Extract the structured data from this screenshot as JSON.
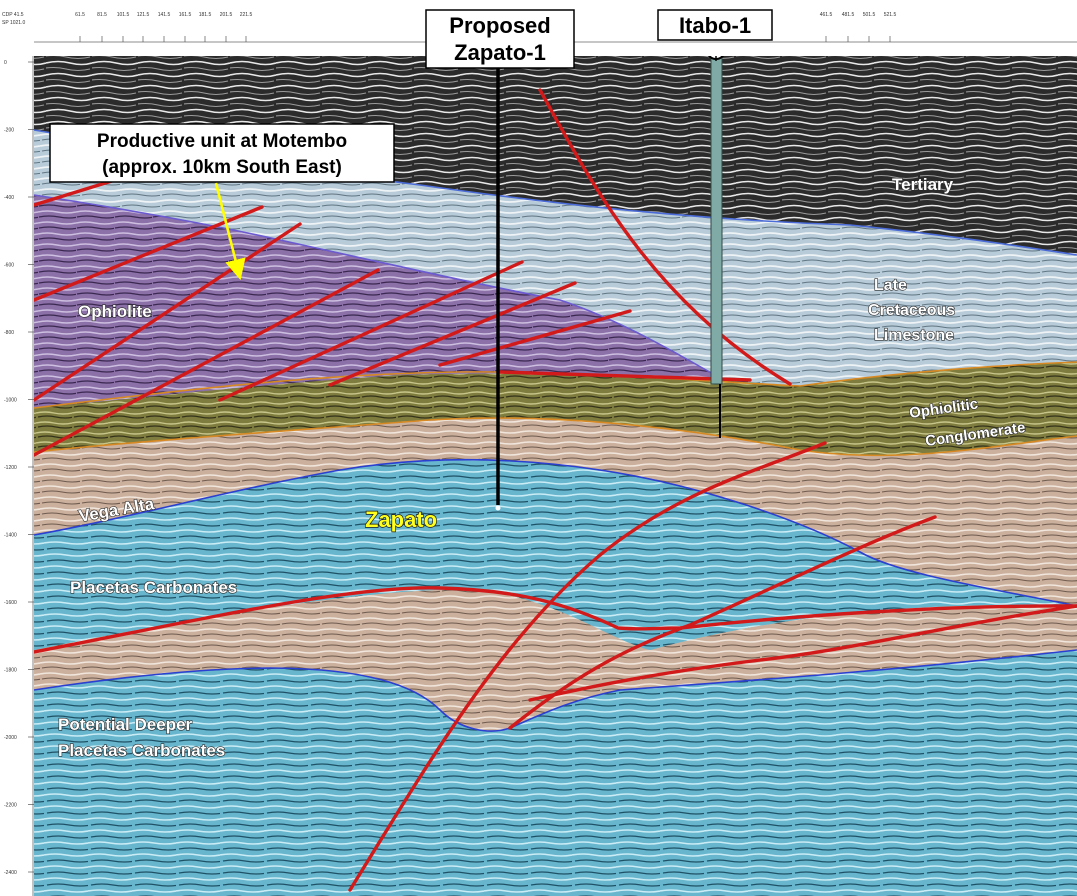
{
  "wells": {
    "proposed": {
      "line1": "Proposed",
      "line2": "Zapato-1"
    },
    "itabo": {
      "label": "Itabo-1"
    }
  },
  "callout": {
    "line1": "Productive unit at Motembo",
    "line2": "(approx. 10km South East)"
  },
  "units": {
    "tertiary": "Tertiary",
    "late1": "Late",
    "late2": "Cretaceous",
    "late3": "Limestone",
    "ophiolite": "Ophiolite",
    "conglo1": "Ophiolitic",
    "conglo2": "Conglomerate",
    "vega": "Vega Alta",
    "zapato": "Zapato",
    "placetas": "Placetas Carbonates",
    "deeper1": "Potential Deeper",
    "deeper2": "Placetas Carbonates"
  },
  "axes": {
    "header_left1": "CDP 41.5",
    "header_left2": "SP 1021.0",
    "top_ticks": [
      "61.5",
      "81.5",
      "101.5",
      "121.5",
      "141.5",
      "161.5",
      "181.5",
      "201.5",
      "221.5",
      "461.5",
      "481.5",
      "501.5",
      "521.5"
    ],
    "depth_ticks": [
      "0",
      "-200",
      "-400",
      "-600",
      "-800",
      "-1000",
      "-1200",
      "-1400",
      "-1600",
      "-1800",
      "-2000",
      "-2200",
      "-2400"
    ]
  },
  "colors": {
    "tertiary": "#2a2a2a",
    "late_cretaceous": "#b4c8d6",
    "ophiolite": "#8a6ea6",
    "conglomerate": "#7c7a3c",
    "vega_alta": "#c9ad9a",
    "carbonates": "#69b8cf",
    "fault": "#d21a1a",
    "arrow": "#ffff00"
  }
}
